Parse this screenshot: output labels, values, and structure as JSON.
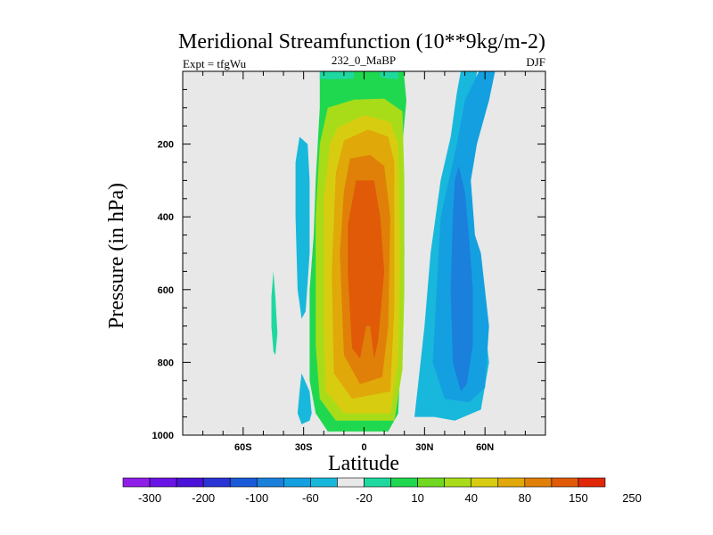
{
  "chart_data": {
    "type": "heatmap",
    "title": "Meridional Streamfunction (10**9kg/m-2)",
    "subtitle_left": "Expt = tfgWu",
    "subtitle_center": "232_0_MaBP",
    "subtitle_right": "DJF",
    "xlabel": "Latitude",
    "ylabel": "Pressure (in hPa)",
    "xlim": [
      -90,
      90
    ],
    "ylim": [
      0,
      1000
    ],
    "y_inverted": true,
    "xticks": [
      {
        "value": -60,
        "label": "60S"
      },
      {
        "value": -30,
        "label": "30S"
      },
      {
        "value": 0,
        "label": "0"
      },
      {
        "value": 30,
        "label": "30N"
      },
      {
        "value": 60,
        "label": "60N"
      }
    ],
    "yticks": [
      {
        "value": 200,
        "label": "200"
      },
      {
        "value": 400,
        "label": "400"
      },
      {
        "value": 600,
        "label": "600"
      },
      {
        "value": 800,
        "label": "800"
      },
      {
        "value": 1000,
        "label": "1000"
      }
    ],
    "background_color": "#e8e8e8",
    "colorbar": {
      "colors": [
        "#8f1ee8",
        "#6a14e6",
        "#4a12d8",
        "#2a34d4",
        "#1a5ad8",
        "#1a80dc",
        "#14a0e0",
        "#18b8dc",
        "#e8e8e8",
        "#1ed8a0",
        "#20d850",
        "#70d820",
        "#a8dc18",
        "#d8cc10",
        "#e0a808",
        "#e08008",
        "#e05a08",
        "#e02808"
      ],
      "labels": [
        "-300",
        "-200",
        "-100",
        "-60",
        "-20",
        "10",
        "40",
        "80",
        "150",
        "250"
      ]
    },
    "regions": [
      {
        "name": "green-outer",
        "level": 10,
        "color": "#20d850",
        "points": [
          [
            -22,
            0
          ],
          [
            20,
            0
          ],
          [
            20,
            20
          ],
          [
            21,
            80
          ],
          [
            19,
            200
          ],
          [
            20,
            500
          ],
          [
            18,
            800
          ],
          [
            17,
            940
          ],
          [
            12,
            990
          ],
          [
            -18,
            990
          ],
          [
            -24,
            940
          ],
          [
            -27,
            850
          ],
          [
            -27,
            600
          ],
          [
            -25,
            450
          ],
          [
            -24,
            300
          ],
          [
            -22,
            100
          ]
        ]
      },
      {
        "name": "teal-top",
        "level": 10,
        "color": "#1ed8a0",
        "points": [
          [
            -22,
            0
          ],
          [
            -5,
            0
          ],
          [
            -5,
            20
          ],
          [
            -18,
            22
          ],
          [
            -22,
            20
          ]
        ]
      },
      {
        "name": "teal-top-right",
        "level": 10,
        "color": "#1ed8a0",
        "points": [
          [
            8,
            0
          ],
          [
            17,
            0
          ],
          [
            17,
            20
          ],
          [
            12,
            20
          ],
          [
            8,
            15
          ]
        ]
      },
      {
        "name": "yellowgreen",
        "level": 40,
        "color": "#a8dc18",
        "points": [
          [
            -18,
            100
          ],
          [
            -5,
            78
          ],
          [
            10,
            75
          ],
          [
            19,
            110
          ],
          [
            20,
            300
          ],
          [
            20,
            600
          ],
          [
            19,
            820
          ],
          [
            15,
            960
          ],
          [
            -14,
            960
          ],
          [
            -22,
            900
          ],
          [
            -24,
            750
          ],
          [
            -24,
            400
          ],
          [
            -22,
            200
          ]
        ]
      },
      {
        "name": "yellow",
        "level": 80,
        "color": "#d8cc10",
        "points": [
          [
            -13,
            155
          ],
          [
            0,
            120
          ],
          [
            13,
            140
          ],
          [
            17,
            200
          ],
          [
            18,
            500
          ],
          [
            17,
            800
          ],
          [
            13,
            940
          ],
          [
            -10,
            940
          ],
          [
            -19,
            880
          ],
          [
            -20,
            700
          ],
          [
            -20,
            350
          ],
          [
            -17,
            200
          ]
        ]
      },
      {
        "name": "gold",
        "level": 150,
        "color": "#e0a808",
        "points": [
          [
            -10,
            190
          ],
          [
            2,
            160
          ],
          [
            12,
            180
          ],
          [
            15,
            250
          ],
          [
            15,
            650
          ],
          [
            13,
            880
          ],
          [
            -6,
            900
          ],
          [
            -15,
            830
          ],
          [
            -16,
            550
          ],
          [
            -14,
            280
          ]
        ]
      },
      {
        "name": "orange",
        "level": 150,
        "color": "#e08008",
        "points": [
          [
            -7,
            240
          ],
          [
            3,
            230
          ],
          [
            10,
            260
          ],
          [
            13,
            400
          ],
          [
            12,
            700
          ],
          [
            9,
            840
          ],
          [
            -2,
            860
          ],
          [
            -10,
            780
          ],
          [
            -12,
            500
          ],
          [
            -10,
            330
          ]
        ]
      },
      {
        "name": "redorange",
        "level": 250,
        "color": "#e05a08",
        "points": [
          [
            -4,
            300
          ],
          [
            5,
            300
          ],
          [
            8,
            400
          ],
          [
            10,
            550
          ],
          [
            7,
            740
          ],
          [
            5,
            790
          ],
          [
            3,
            700
          ],
          [
            1,
            700
          ],
          [
            -2,
            790
          ],
          [
            -6,
            760
          ],
          [
            -8,
            560
          ],
          [
            -8,
            420
          ]
        ]
      },
      {
        "name": "cyan-right",
        "level": -20,
        "color": "#18b8dc",
        "points": [
          [
            48,
            0
          ],
          [
            56,
            0
          ],
          [
            54,
            100
          ],
          [
            52,
            300
          ],
          [
            55,
            500
          ],
          [
            58,
            600
          ],
          [
            62,
            800
          ],
          [
            58,
            930
          ],
          [
            45,
            960
          ],
          [
            35,
            950
          ],
          [
            25,
            950
          ],
          [
            27,
            850
          ],
          [
            30,
            700
          ],
          [
            33,
            500
          ],
          [
            38,
            300
          ],
          [
            43,
            180
          ],
          [
            46,
            60
          ]
        ]
      },
      {
        "name": "blue-right-1",
        "level": -20,
        "color": "#14a0e0",
        "points": [
          [
            57,
            0
          ],
          [
            65,
            0
          ],
          [
            62,
            80
          ],
          [
            56,
            200
          ],
          [
            53,
            300
          ],
          [
            55,
            450
          ],
          [
            58,
            500
          ],
          [
            62,
            700
          ],
          [
            60,
            870
          ],
          [
            52,
            910
          ],
          [
            40,
            900
          ],
          [
            34,
            800
          ],
          [
            36,
            600
          ],
          [
            38,
            400
          ],
          [
            42,
            300
          ],
          [
            46,
            200
          ],
          [
            50,
            80
          ]
        ]
      },
      {
        "name": "blue-right-2",
        "level": -60,
        "color": "#1a80dc",
        "points": [
          [
            47,
            260
          ],
          [
            50,
            330
          ],
          [
            52,
            450
          ],
          [
            54,
            600
          ],
          [
            54,
            750
          ],
          [
            51,
            860
          ],
          [
            48,
            880
          ],
          [
            44,
            800
          ],
          [
            43,
            600
          ],
          [
            44,
            400
          ],
          [
            45,
            300
          ]
        ]
      },
      {
        "name": "cyan-left-upper",
        "level": -20,
        "color": "#18b8dc",
        "points": [
          [
            -32,
            180
          ],
          [
            -28,
            200
          ],
          [
            -27,
            300
          ],
          [
            -27,
            500
          ],
          [
            -28,
            580
          ],
          [
            -29,
            660
          ],
          [
            -31,
            680
          ],
          [
            -33,
            600
          ],
          [
            -34,
            400
          ],
          [
            -34,
            250
          ]
        ]
      },
      {
        "name": "cyan-left-lower",
        "level": -20,
        "color": "#18b8dc",
        "points": [
          [
            -31,
            830
          ],
          [
            -27,
            880
          ],
          [
            -26,
            940
          ],
          [
            -27,
            960
          ],
          [
            -31,
            970
          ],
          [
            -33,
            940
          ],
          [
            -32,
            880
          ]
        ]
      },
      {
        "name": "teal-sliver",
        "level": 10,
        "color": "#1ed8a0",
        "points": [
          [
            -45,
            550
          ],
          [
            -44,
            620
          ],
          [
            -43,
            720
          ],
          [
            -44,
            780
          ],
          [
            -45,
            770
          ],
          [
            -46,
            700
          ],
          [
            -46,
            620
          ]
        ]
      }
    ]
  }
}
